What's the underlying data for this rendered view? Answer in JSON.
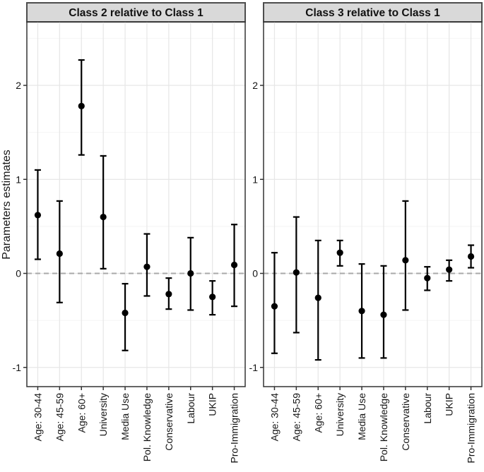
{
  "chart_data": {
    "type": "scatter",
    "subtype": "faceted_coefficient_plot_with_error_bars",
    "title": "",
    "xlabel": "",
    "ylabel": "Parameters estimates",
    "yticks": [
      2,
      1,
      0,
      -1
    ],
    "minor_yticks": [
      2.5,
      1.5,
      0.5,
      -0.5
    ],
    "ylim": [
      -1.2,
      2.67
    ],
    "zero_reference_line": 0,
    "grid": "on",
    "legend": "none",
    "categories": [
      "Age: 30-44",
      "Age: 45-59",
      "Age: 60+",
      "University",
      "Media Use",
      "Pol. Knowledge",
      "Conservative",
      "Labour",
      "UKIP",
      "Pro-Immigration"
    ],
    "panels": [
      {
        "title": "Class 2 relative to Class 1",
        "estimates": [
          0.62,
          0.21,
          1.78,
          0.6,
          -0.42,
          0.07,
          -0.22,
          0.0,
          -0.25,
          0.09
        ],
        "lower": [
          0.15,
          -0.31,
          1.26,
          0.05,
          -0.82,
          -0.24,
          -0.38,
          -0.39,
          -0.44,
          -0.35
        ],
        "upper": [
          1.1,
          0.77,
          2.27,
          1.25,
          -0.11,
          0.42,
          -0.05,
          0.38,
          -0.08,
          0.52
        ]
      },
      {
        "title": "Class 3 relative to Class 1",
        "estimates": [
          -0.35,
          0.01,
          -0.26,
          0.22,
          -0.4,
          -0.44,
          0.14,
          -0.05,
          0.04,
          0.18
        ],
        "lower": [
          -0.85,
          -0.63,
          -0.92,
          0.08,
          -0.9,
          -0.9,
          -0.39,
          -0.18,
          -0.08,
          0.06
        ],
        "upper": [
          0.22,
          0.6,
          0.35,
          0.35,
          0.1,
          0.08,
          0.77,
          0.07,
          0.14,
          0.3
        ]
      }
    ],
    "colors": {
      "point": "#000000",
      "error_bar": "#000000",
      "grid_major": "#e6e6e6",
      "grid_minor": "#f4f4f4",
      "zero_line": "#a8a8a8",
      "facet_header_bg": "#d9d9d9",
      "facet_header_border": "#4d4d4d",
      "panel_border": "#333333",
      "text": "#141414",
      "background": "#ffffff"
    }
  }
}
